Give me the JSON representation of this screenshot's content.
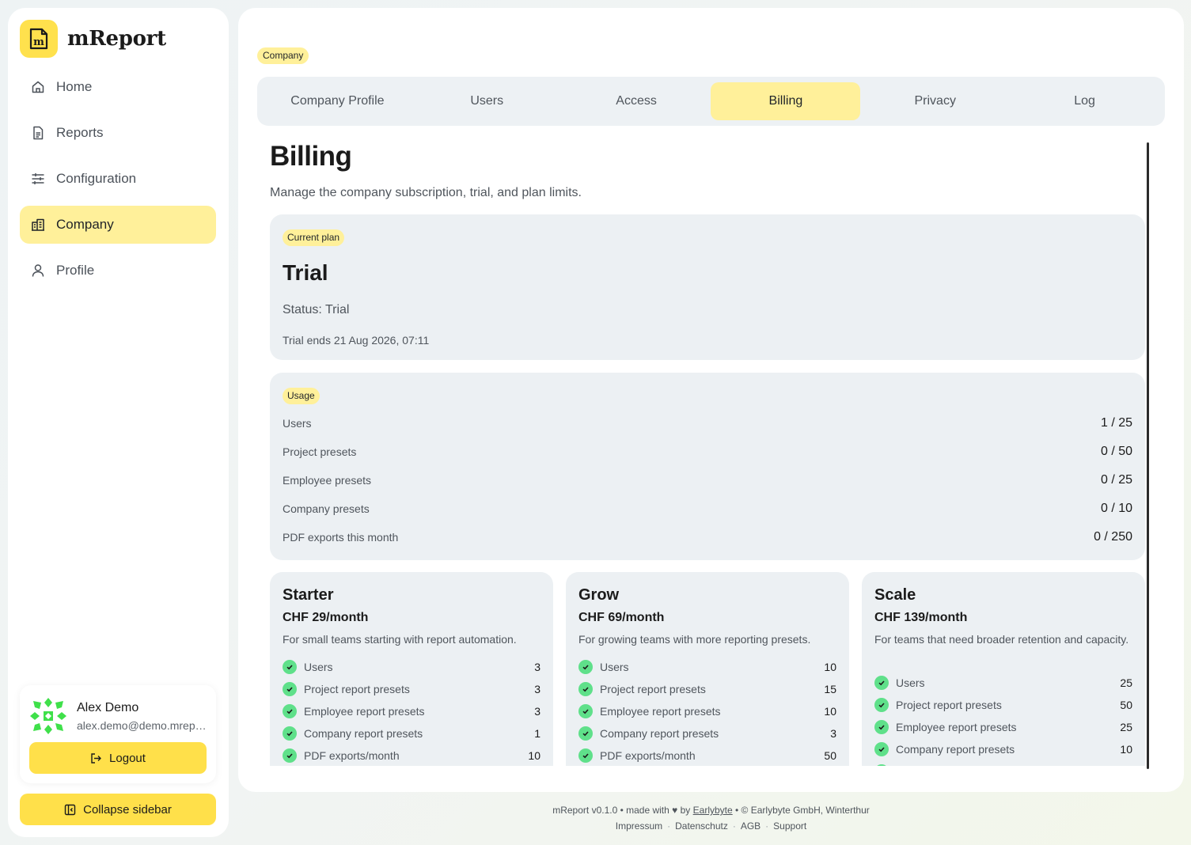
{
  "brand": {
    "name": "mReport",
    "logo_icon": "m-logo-icon",
    "accent": "#ffe14d"
  },
  "sidebar": {
    "items": [
      {
        "label": "Home",
        "icon": "home-icon"
      },
      {
        "label": "Reports",
        "icon": "report-icon"
      },
      {
        "label": "Configuration",
        "icon": "sliders-icon"
      },
      {
        "label": "Company",
        "icon": "building-icon",
        "active": true
      },
      {
        "label": "Profile",
        "icon": "user-icon"
      }
    ],
    "user": {
      "name": "Alex Demo",
      "email": "alex.demo@demo.mreport.ch",
      "logout_label": "Logout"
    },
    "collapse_label": "Collapse sidebar"
  },
  "breadcrumb": "Company",
  "tabs": [
    {
      "label": "Company Profile"
    },
    {
      "label": "Users"
    },
    {
      "label": "Access"
    },
    {
      "label": "Billing",
      "active": true
    },
    {
      "label": "Privacy"
    },
    {
      "label": "Log"
    }
  ],
  "page": {
    "title": "Billing",
    "subtitle": "Manage the company subscription, trial, and plan limits."
  },
  "current_plan": {
    "chip": "Current plan",
    "name": "Trial",
    "status": "Status: Trial",
    "ends": "Trial ends 21 Aug 2026, 07:11"
  },
  "usage": {
    "chip": "Usage",
    "rows": [
      {
        "label": "Users",
        "value": "1 / 25"
      },
      {
        "label": "Project presets",
        "value": "0 / 50"
      },
      {
        "label": "Employee presets",
        "value": "0 / 25"
      },
      {
        "label": "Company presets",
        "value": "0 / 10"
      },
      {
        "label": "PDF exports this month",
        "value": "0 / 250"
      }
    ]
  },
  "plans": [
    {
      "name": "Starter",
      "price": "CHF 29/month",
      "desc": "For small teams starting with report automation.",
      "features": [
        {
          "label": "Users",
          "value": "3"
        },
        {
          "label": "Project report presets",
          "value": "3"
        },
        {
          "label": "Employee report presets",
          "value": "3"
        },
        {
          "label": "Company report presets",
          "value": "1"
        },
        {
          "label": "PDF exports/month",
          "value": "10"
        }
      ]
    },
    {
      "name": "Grow",
      "price": "CHF 69/month",
      "desc": "For growing teams with more reporting presets.",
      "features": [
        {
          "label": "Users",
          "value": "10"
        },
        {
          "label": "Project report presets",
          "value": "15"
        },
        {
          "label": "Employee report presets",
          "value": "10"
        },
        {
          "label": "Company report presets",
          "value": "3"
        },
        {
          "label": "PDF exports/month",
          "value": "50"
        }
      ]
    },
    {
      "name": "Scale",
      "price": "CHF 139/month",
      "desc": "For teams that need broader retention and capacity.",
      "features": [
        {
          "label": "Users",
          "value": "25"
        },
        {
          "label": "Project report presets",
          "value": "50"
        },
        {
          "label": "Employee report presets",
          "value": "25"
        },
        {
          "label": "Company report presets",
          "value": "10"
        }
      ]
    }
  ],
  "footer": {
    "version_text": "mReport v0.1.0 • made with ♥ by",
    "maker_link": "Earlybyte",
    "copyright": "• © Earlybyte GmbH, Winterthur",
    "links": [
      "Impressum",
      "Datenschutz",
      "AGB",
      "Support"
    ]
  }
}
